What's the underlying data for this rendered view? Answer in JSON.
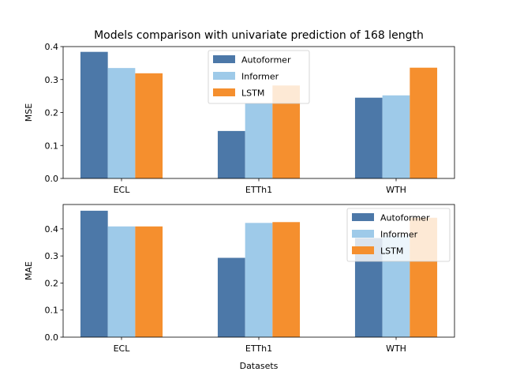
{
  "chart_data": [
    {
      "type": "bar",
      "title": "Models comparison with univariate prediction of 168 length",
      "xlabel": "",
      "ylabel": "MSE",
      "categories": [
        "ECL",
        "ETTh1",
        "WTH"
      ],
      "ylim": [
        0,
        0.4
      ],
      "yticks": [
        "0.0",
        "0.1",
        "0.2",
        "0.3",
        "0.4"
      ],
      "series": [
        {
          "name": "Autoformer",
          "values": [
            0.384,
            0.144,
            0.245
          ]
        },
        {
          "name": "Informer",
          "values": [
            0.335,
            0.228,
            0.252
          ]
        },
        {
          "name": "LSTM",
          "values": [
            0.319,
            0.282,
            0.336
          ]
        }
      ],
      "legend_placement": "upper center",
      "grid": false
    },
    {
      "type": "bar",
      "title": "",
      "xlabel": "Datasets",
      "ylabel": "MAE",
      "categories": [
        "ECL",
        "ETTh1",
        "WTH"
      ],
      "ylim": [
        0,
        0.49
      ],
      "yticks": [
        "0.0",
        "0.1",
        "0.2",
        "0.3",
        "0.4"
      ],
      "series": [
        {
          "name": "Autoformer",
          "values": [
            0.467,
            0.293,
            0.366
          ]
        },
        {
          "name": "Informer",
          "values": [
            0.409,
            0.422,
            0.376
          ]
        },
        {
          "name": "LSTM",
          "values": [
            0.409,
            0.425,
            0.441
          ]
        }
      ],
      "legend_placement": "upper right",
      "grid": false
    }
  ],
  "colors": {
    "Autoformer": "#4c78a8",
    "Informer": "#9ecae9",
    "LSTM": "#f58f2e"
  }
}
